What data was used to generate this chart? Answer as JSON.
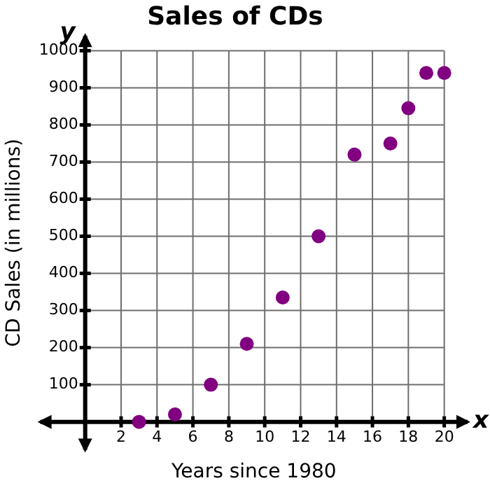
{
  "chart_data": {
    "type": "scatter",
    "title": "Sales of CDs",
    "xlabel": "Years since 1980",
    "ylabel": "CD Sales (in millions)",
    "annotations": [
      "x",
      "y"
    ],
    "x": [
      3,
      5,
      7,
      9,
      11,
      13,
      15,
      17,
      18,
      19,
      20
    ],
    "series": [
      {
        "color": "#800080",
        "values": [
          0,
          20,
          100,
          210,
          335,
          500,
          720,
          750,
          845,
          940,
          940
        ]
      }
    ],
    "xlim": [
      -2.5,
      21.3
    ],
    "ylim": [
      -75,
      1040
    ],
    "xticks": [
      2,
      4,
      6,
      8,
      10,
      12,
      14,
      16,
      18,
      20
    ],
    "yticks": [
      100,
      200,
      300,
      400,
      500,
      600,
      700,
      800,
      900,
      1000
    ],
    "grid": true,
    "legend": false,
    "marker": "circle"
  }
}
